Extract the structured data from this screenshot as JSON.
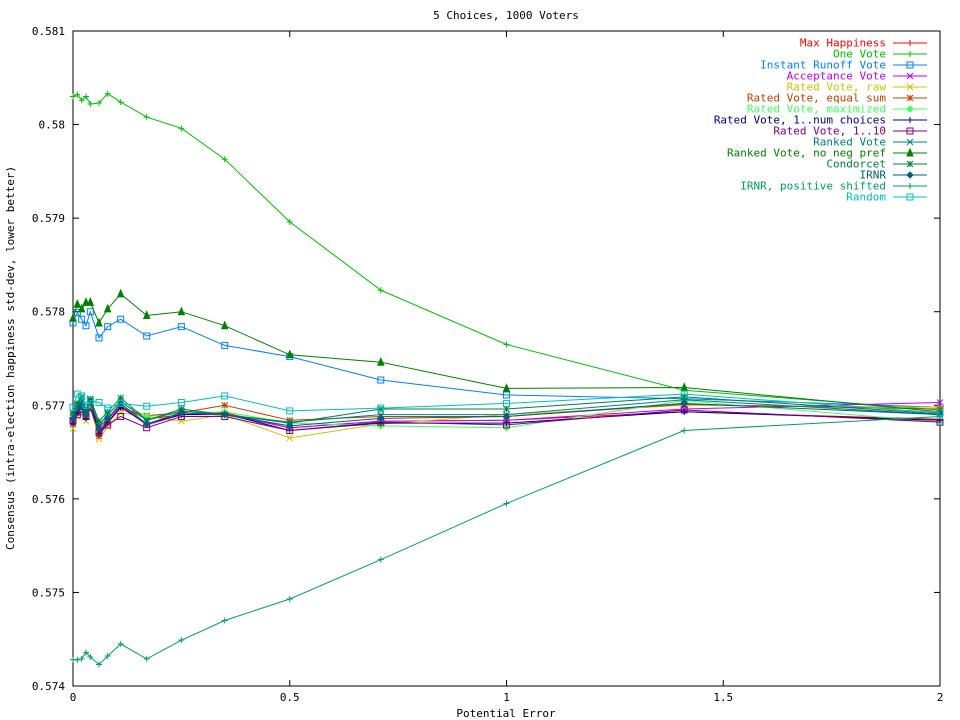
{
  "chart_data": {
    "type": "line",
    "title": "5 Choices, 1000 Voters",
    "xlabel": "Potential Error",
    "ylabel": "Consensus (intra-election happiness std-dev, lower better)",
    "xlim": [
      0,
      2
    ],
    "ylim": [
      0.574,
      0.581
    ],
    "xticks": [
      0,
      0.5,
      1,
      1.5,
      2
    ],
    "xtick_labels": [
      "0",
      "0.5",
      "1",
      "1.5",
      "2"
    ],
    "yticks": [
      0.574,
      0.575,
      0.576,
      0.577,
      0.578,
      0.579,
      0.58,
      0.581
    ],
    "ytick_labels": [
      "0.574",
      "0.575",
      "0.576",
      "0.577",
      "0.578",
      "0.579",
      "0.58",
      "0.581"
    ],
    "grid": false,
    "legend_position": "top-right",
    "x": [
      0,
      0.01,
      0.02,
      0.03,
      0.04,
      0.06,
      0.08,
      0.11,
      0.17,
      0.25,
      0.35,
      0.5,
      0.71,
      1,
      1.41,
      2
    ],
    "series": [
      {
        "name": "Max Happiness",
        "color": "#ff0000",
        "marker": "plus",
        "values": [
          0.57682,
          0.57695,
          0.57701,
          0.57688,
          0.57702,
          0.57668,
          0.57685,
          0.57699,
          0.57685,
          0.5769,
          0.57692,
          0.57676,
          0.57683,
          0.57684,
          0.57693,
          0.57685
        ]
      },
      {
        "name": "One Vote",
        "color": "#00c000",
        "marker": "plus",
        "values": [
          0.5803,
          0.58032,
          0.58026,
          0.5803,
          0.58022,
          0.58023,
          0.58033,
          0.58024,
          0.58008,
          0.57996,
          0.57963,
          0.57896,
          0.57823,
          0.57765,
          0.57716,
          0.57695
        ]
      },
      {
        "name": "Instant Runoff Vote",
        "color": "#0080ff",
        "marker": "square",
        "values": [
          0.57788,
          0.57799,
          0.57792,
          0.57785,
          0.578,
          0.57772,
          0.57784,
          0.57792,
          0.57774,
          0.57784,
          0.57764,
          0.57752,
          0.57727,
          0.57711,
          0.57707,
          0.57698
        ]
      },
      {
        "name": "Acceptance Vote",
        "color": "#c000ff",
        "marker": "x",
        "values": [
          0.57682,
          0.57692,
          0.57698,
          0.57688,
          0.57705,
          0.57672,
          0.57685,
          0.577,
          0.57679,
          0.5769,
          0.5769,
          0.57676,
          0.57683,
          0.57684,
          0.57696,
          0.57703
        ]
      },
      {
        "name": "Rated Vote, raw",
        "color": "#c8c800",
        "marker": "x",
        "values": [
          0.57675,
          0.57688,
          0.57693,
          0.57683,
          0.57698,
          0.57664,
          0.57677,
          0.57692,
          0.57688,
          0.57683,
          0.5769,
          0.57665,
          0.5768,
          0.5769,
          0.577,
          0.57698
        ]
      },
      {
        "name": "Rated Vote, equal sum",
        "color": "#c04000",
        "marker": "star",
        "values": [
          0.5768,
          0.57696,
          0.577,
          0.57688,
          0.57706,
          0.57667,
          0.57681,
          0.57697,
          0.57689,
          0.57692,
          0.577,
          0.57684,
          0.57688,
          0.57688,
          0.57701,
          0.57696
        ]
      },
      {
        "name": "Rated Vote, maximized",
        "color": "#40ff60",
        "marker": "diamond",
        "values": [
          0.57692,
          0.57702,
          0.57695,
          0.5769,
          0.57703,
          0.5768,
          0.5769,
          0.57703,
          0.57688,
          0.57691,
          0.57693,
          0.57681,
          0.57678,
          0.57676,
          0.57705,
          0.57682
        ]
      },
      {
        "name": "Rated Vote, 1..num choices",
        "color": "#000080",
        "marker": "plus",
        "values": [
          0.5768,
          0.57692,
          0.57698,
          0.57686,
          0.57704,
          0.5767,
          0.57682,
          0.57698,
          0.5768,
          0.5769,
          0.57691,
          0.57673,
          0.57681,
          0.57681,
          0.57693,
          0.57684
        ]
      },
      {
        "name": "Rated Vote, 1..10",
        "color": "#800080",
        "marker": "square",
        "values": [
          0.57684,
          0.5769,
          0.57693,
          0.57688,
          0.57697,
          0.57671,
          0.57679,
          0.57688,
          0.57676,
          0.57688,
          0.57688,
          0.57673,
          0.57682,
          0.57679,
          0.57695,
          0.57682
        ]
      },
      {
        "name": "Ranked Vote",
        "color": "#008080",
        "marker": "x",
        "values": [
          0.57688,
          0.577,
          0.57705,
          0.57692,
          0.57706,
          0.57678,
          0.5769,
          0.57704,
          0.57684,
          0.57694,
          0.5769,
          0.57682,
          0.5769,
          0.5769,
          0.57706,
          0.5769
        ]
      },
      {
        "name": "Ranked Vote, no neg pref",
        "color": "#008000",
        "marker": "triangle",
        "values": [
          0.57793,
          0.57808,
          0.57803,
          0.5781,
          0.5781,
          0.57788,
          0.57803,
          0.57819,
          0.57796,
          0.578,
          0.57785,
          0.57754,
          0.57746,
          0.57718,
          0.57719,
          0.57693
        ]
      },
      {
        "name": "Condorcet",
        "color": "#008040",
        "marker": "star",
        "values": [
          0.57692,
          0.57702,
          0.57709,
          0.57695,
          0.57707,
          0.57683,
          0.57693,
          0.57708,
          0.57684,
          0.57696,
          0.5769,
          0.57681,
          0.57696,
          0.57696,
          0.57709,
          0.57691
        ]
      },
      {
        "name": "IRNR",
        "color": "#006080",
        "marker": "diamond",
        "values": [
          0.57686,
          0.57697,
          0.577,
          0.5769,
          0.57703,
          0.57676,
          0.57686,
          0.57702,
          0.5768,
          0.57692,
          0.5769,
          0.57678,
          0.57686,
          0.57688,
          0.57702,
          0.5769
        ]
      },
      {
        "name": "IRNR, positive shifted",
        "color": "#00a060",
        "marker": "plus",
        "values": [
          0.57428,
          0.57428,
          0.57429,
          0.57436,
          0.57431,
          0.57423,
          0.57432,
          0.57445,
          0.57429,
          0.57449,
          0.5747,
          0.57493,
          0.57535,
          0.57595,
          0.57673,
          0.57688
        ]
      },
      {
        "name": "Random",
        "color": "#00c0c0",
        "marker": "square",
        "values": [
          0.57698,
          0.57712,
          0.5771,
          0.577,
          0.57705,
          0.57703,
          0.57697,
          0.57702,
          0.57699,
          0.57703,
          0.5771,
          0.57694,
          0.57697,
          0.57702,
          0.57712,
          0.57692
        ]
      }
    ]
  }
}
